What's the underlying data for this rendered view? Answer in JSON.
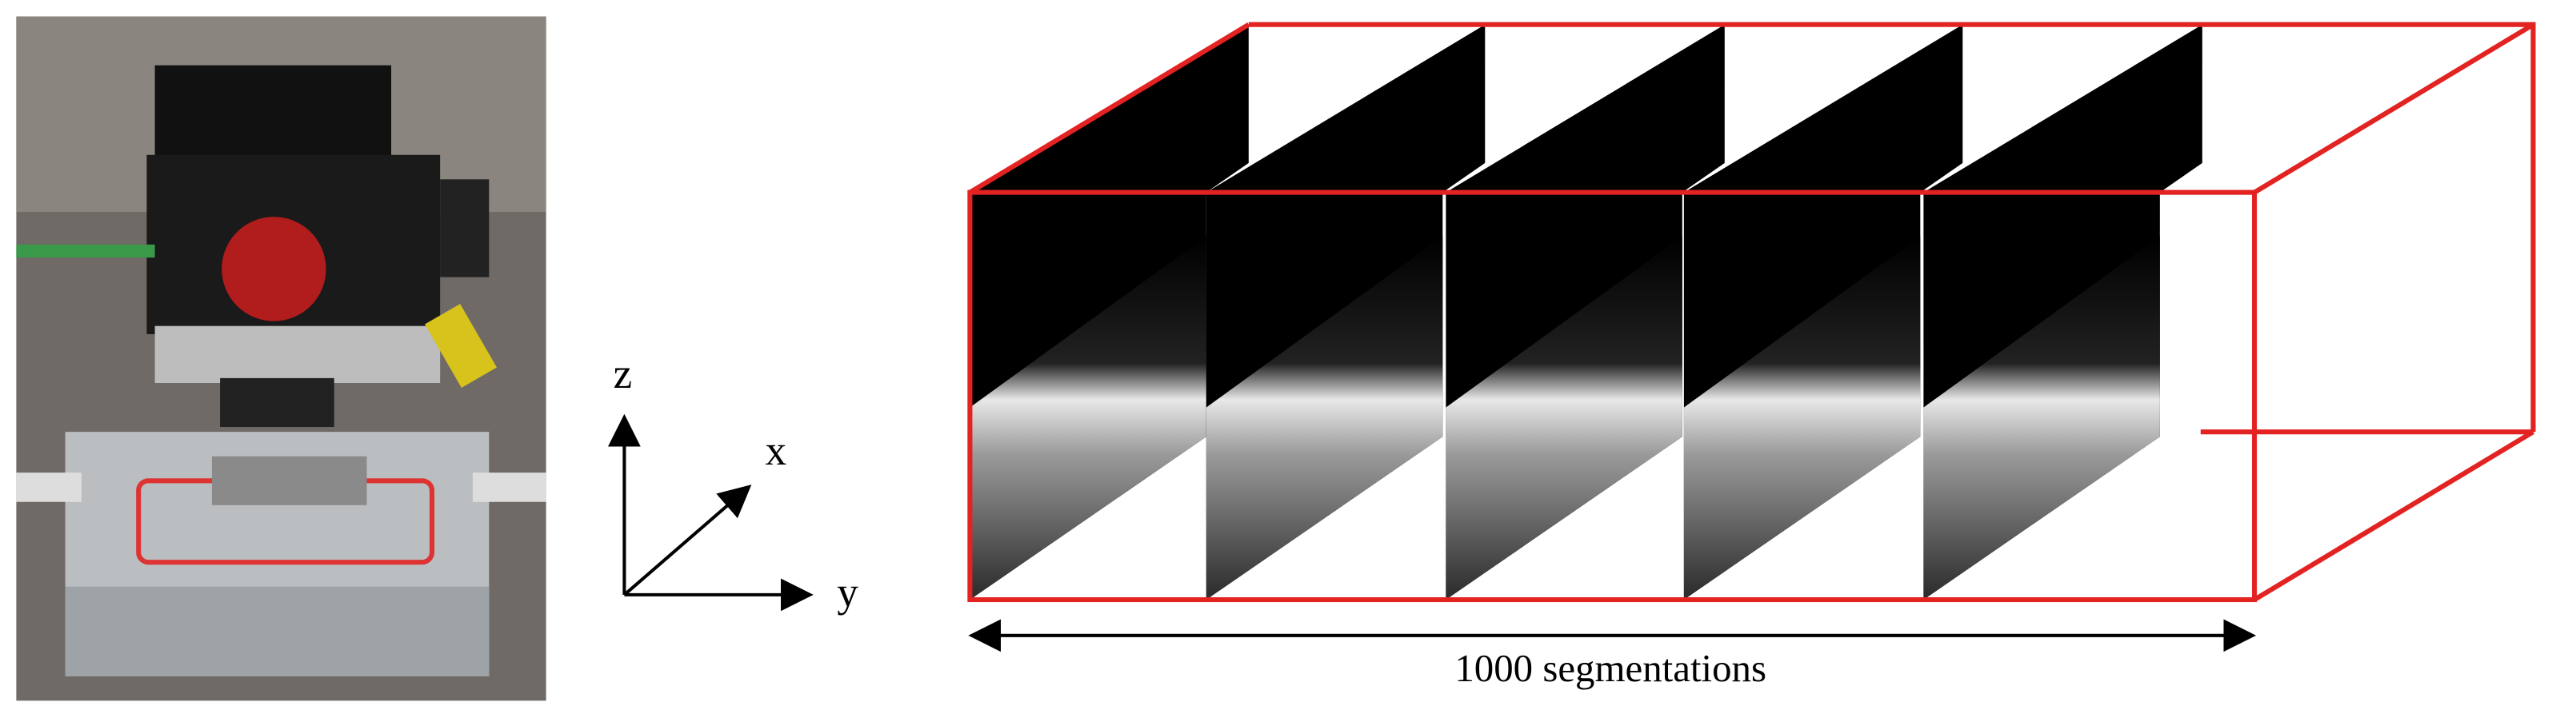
{
  "axes": {
    "z": "z",
    "x": "x",
    "y": "y"
  },
  "volume": {
    "caption": "1000 segmentations"
  }
}
